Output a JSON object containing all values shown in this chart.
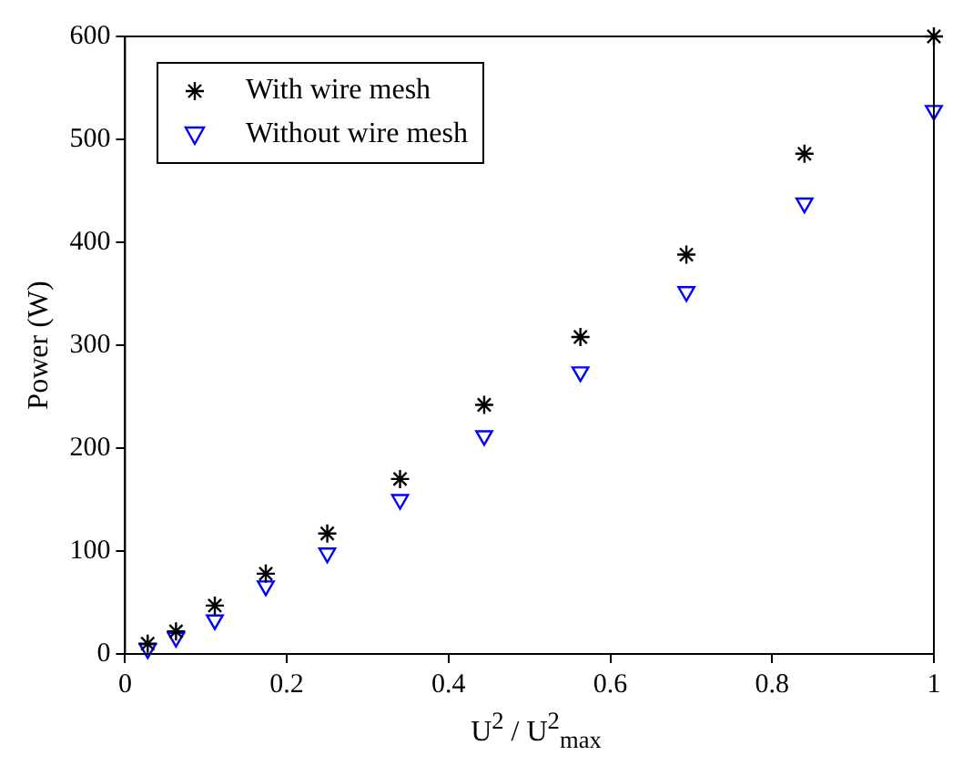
{
  "chart_data": {
    "type": "scatter",
    "xlabel": "U$^{2}$ / U$^{2}$$_{max}$",
    "ylabel": "Power (W)",
    "x": [
      0.028,
      0.063,
      0.111,
      0.174,
      0.25,
      0.34,
      0.444,
      0.563,
      0.694,
      0.84,
      1
    ],
    "series": [
      {
        "name": "With wire mesh",
        "color": "#000000",
        "marker": "cross",
        "values": [
          10,
          22,
          47,
          78,
          117,
          170,
          242,
          308,
          388,
          486,
          600
        ]
      },
      {
        "name": "Without wire mesh",
        "color": "#0000ff",
        "marker": "triangle",
        "values": [
          5,
          16,
          33,
          66,
          98,
          150,
          212,
          274,
          352,
          438,
          528
        ]
      }
    ],
    "xlim": [
      0,
      1
    ],
    "xticks": [
      0,
      0.2,
      0.4,
      0.6,
      0.8,
      1
    ],
    "ylim": [
      0,
      600
    ],
    "yticks": [
      0,
      100,
      200,
      300,
      400,
      500,
      600
    ],
    "grid": false,
    "legend": "top left"
  }
}
